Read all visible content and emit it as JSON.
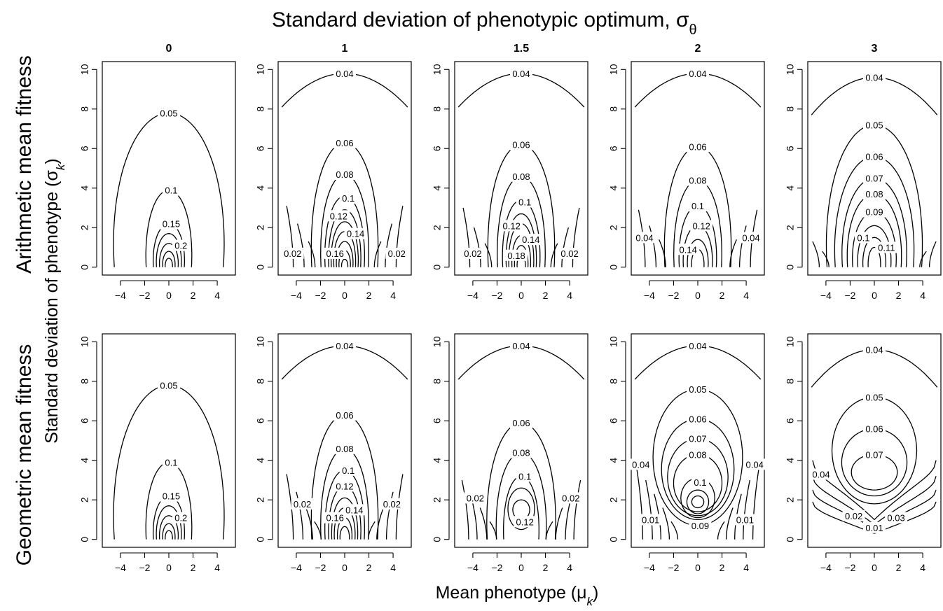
{
  "figure": {
    "top_title": "Standard deviation of phenotypic optimum, σ",
    "top_title_sub": "θ",
    "x_label": "Mean phenotype (μ",
    "x_label_sub": "k",
    "y_label": "Standard deviation of phenotype (σ",
    "y_label_sub": "k",
    "paren_close": ")",
    "row_labels": [
      "Arithmetic mean fitness",
      "Geometric mean fitness"
    ],
    "column_labels": [
      "0",
      "1",
      "1.5",
      "2",
      "3"
    ]
  },
  "chart_data": {
    "type": "contour",
    "x_ticks": [
      -4,
      -2,
      0,
      2,
      4
    ],
    "y_ticks": [
      0,
      2,
      4,
      6,
      8,
      10
    ],
    "xlim": [
      -5.5,
      5.5
    ],
    "ylim": [
      -0.4,
      10.4
    ],
    "panels": [
      {
        "row": 0,
        "col": 0,
        "levels": [
          {
            "label": "0.05",
            "half_width": 5.3,
            "height": 7.8,
            "label_x": 0,
            "label_y": 7.8
          },
          {
            "label": "0.1",
            "half_width": 2.2,
            "height": 3.9,
            "label_x": 0.2,
            "label_y": 3.9
          },
          {
            "label": "0.15",
            "half_width": 1.5,
            "height": 2.2,
            "label_x": 0.2,
            "label_y": 2.2
          },
          {
            "label": "0.2",
            "half_width": 1.2,
            "height": 1.7,
            "label_x": 1.0,
            "label_y": 1.1
          },
          {
            "label": "",
            "half_width": 0.9,
            "height": 1.2
          },
          {
            "label": "",
            "half_width": 0.6,
            "height": 0.8
          },
          {
            "label": "",
            "half_width": 0.35,
            "height": 0.45
          }
        ]
      },
      {
        "row": 0,
        "col": 1,
        "levels": [
          {
            "label": "0.04",
            "half_width": 5.2,
            "height": 9.8,
            "open_y": 8.1,
            "label_x": 0,
            "label_y": 9.8
          },
          {
            "label": "0.06",
            "half_width": 3.2,
            "height": 6.3,
            "label_x": 0,
            "label_y": 6.3
          },
          {
            "label": "0.08",
            "half_width": 2.3,
            "height": 4.7,
            "label_x": 0,
            "label_y": 4.7
          },
          {
            "label": "0.1",
            "half_width": 1.9,
            "height": 3.6,
            "label_x": 0.3,
            "label_y": 3.5
          },
          {
            "label": "0.12",
            "half_width": 1.55,
            "height": 2.9,
            "label_x": -0.5,
            "label_y": 2.6
          },
          {
            "label": "0.14",
            "half_width": 1.3,
            "height": 2.3,
            "label_x": 0.9,
            "label_y": 1.7
          },
          {
            "label": "0.16",
            "half_width": 1.05,
            "height": 1.8,
            "label_x": -0.8,
            "label_y": 0.7
          },
          {
            "label": "",
            "half_width": 0.8,
            "height": 1.3
          },
          {
            "label": "",
            "half_width": 0.55,
            "height": 0.85
          },
          {
            "label": "",
            "half_width": 0.3,
            "height": 0.4
          }
        ],
        "sides": [
          {
            "label": "0.02",
            "x": 4.8,
            "height": 3.1,
            "label_x": -4.3,
            "label_y": 0.7
          },
          {
            "label": "",
            "x": 3.9,
            "height": 2.2
          },
          {
            "label": "",
            "x": 3.0,
            "height": 1.3
          }
        ],
        "side_label_right": {
          "label": "0.02",
          "label_x": 4.3,
          "label_y": 0.7
        }
      },
      {
        "row": 0,
        "col": 2,
        "levels": [
          {
            "label": "0.04",
            "half_width": 5.2,
            "height": 9.8,
            "open_y": 8.1,
            "label_x": 0,
            "label_y": 9.8
          },
          {
            "label": "0.06",
            "half_width": 3.2,
            "height": 6.2,
            "label_x": 0,
            "label_y": 6.2
          },
          {
            "label": "0.08",
            "half_width": 2.3,
            "height": 4.6,
            "label_x": 0,
            "label_y": 4.6
          },
          {
            "label": "0.1",
            "half_width": 1.8,
            "height": 3.4,
            "label_x": 0.3,
            "label_y": 3.3
          },
          {
            "label": "0.12",
            "half_width": 1.45,
            "height": 2.7,
            "label_x": -0.8,
            "label_y": 2.1
          },
          {
            "label": "0.14",
            "half_width": 1.2,
            "height": 2.2,
            "label_x": 0.8,
            "label_y": 1.4
          },
          {
            "label": "0.18",
            "half_width": 0.9,
            "height": 1.6,
            "label_x": -0.4,
            "label_y": 0.6
          },
          {
            "label": "",
            "half_width": 0.65,
            "height": 1.1
          },
          {
            "label": "",
            "half_width": 0.4,
            "height": 0.6
          }
        ],
        "sides": [
          {
            "label": "0.02",
            "x": 4.8,
            "height": 3.0,
            "label_x": -4.0,
            "label_y": 0.7
          },
          {
            "label": "",
            "x": 3.9,
            "height": 2.0
          },
          {
            "label": "",
            "x": 3.0,
            "height": 1.2
          }
        ],
        "side_label_right": {
          "label": "0.02",
          "label_x": 4.0,
          "label_y": 0.7
        }
      },
      {
        "row": 0,
        "col": 3,
        "levels": [
          {
            "label": "0.04",
            "half_width": 5.2,
            "height": 9.8,
            "open_y": 8.1,
            "label_x": 0,
            "label_y": 9.8
          },
          {
            "label": "0.06",
            "half_width": 3.2,
            "height": 6.1,
            "label_x": 0,
            "label_y": 6.1
          },
          {
            "label": "0.08",
            "half_width": 2.3,
            "height": 4.4,
            "label_x": 0,
            "label_y": 4.4
          },
          {
            "label": "0.1",
            "half_width": 1.8,
            "height": 3.1,
            "label_x": 0,
            "label_y": 3.1
          },
          {
            "label": "0.12",
            "half_width": 1.4,
            "height": 2.1,
            "label_x": 0.3,
            "label_y": 2.1
          },
          {
            "label": "0.14",
            "half_width": 1.0,
            "height": 1.4,
            "label_x": -0.8,
            "label_y": 0.9
          },
          {
            "label": "",
            "half_width": 0.6,
            "height": 0.9
          }
        ],
        "sides": [
          {
            "label": "0.04",
            "x": 4.9,
            "height": 2.9,
            "label_x": -4.4,
            "label_y": 1.5
          },
          {
            "label": "",
            "x": 4.0,
            "height": 2.1
          },
          {
            "label": "",
            "x": 3.2,
            "height": 1.4
          }
        ],
        "side_label_right": {
          "label": "0.04",
          "label_x": 4.4,
          "label_y": 1.5
        }
      },
      {
        "row": 0,
        "col": 4,
        "levels": [
          {
            "label": "0.04",
            "half_width": 5.2,
            "height": 9.6,
            "open_y": 7.7,
            "label_x": 0,
            "label_y": 9.6
          },
          {
            "label": "0.05",
            "half_width": 4.6,
            "height": 7.2,
            "label_x": 0,
            "label_y": 7.2
          },
          {
            "label": "0.06",
            "half_width": 3.8,
            "height": 5.6,
            "label_x": 0,
            "label_y": 5.6
          },
          {
            "label": "0.07",
            "half_width": 3.1,
            "height": 4.5,
            "label_x": 0,
            "label_y": 4.5
          },
          {
            "label": "0.08",
            "half_width": 2.6,
            "height": 3.7,
            "label_x": 0,
            "label_y": 3.7
          },
          {
            "label": "0.09",
            "half_width": 2.1,
            "height": 2.8,
            "label_x": 0,
            "label_y": 2.8
          },
          {
            "label": "0.1",
            "half_width": 1.6,
            "height": 2.1,
            "label_x": -0.9,
            "label_y": 1.5
          },
          {
            "label": "0.11",
            "half_width": 1.1,
            "height": 1.5,
            "label_x": 1.0,
            "label_y": 1.0
          },
          {
            "label": "",
            "half_width": 0.6,
            "height": 1.0
          }
        ],
        "sides": [
          {
            "label": "",
            "x": 5.1,
            "height": 1.3
          },
          {
            "label": "",
            "x": 4.3,
            "height": 0.8
          }
        ]
      },
      {
        "row": 1,
        "col": 0,
        "levels": [
          {
            "label": "0.05",
            "half_width": 5.3,
            "height": 7.8,
            "label_x": 0,
            "label_y": 7.8
          },
          {
            "label": "0.1",
            "half_width": 2.2,
            "height": 3.9,
            "label_x": 0.2,
            "label_y": 3.9
          },
          {
            "label": "0.15",
            "half_width": 1.5,
            "height": 2.2,
            "label_x": 0.2,
            "label_y": 2.2
          },
          {
            "label": "0.2",
            "half_width": 1.2,
            "height": 1.7,
            "label_x": 1.0,
            "label_y": 1.1
          },
          {
            "label": "",
            "half_width": 0.9,
            "height": 1.2
          },
          {
            "label": "",
            "half_width": 0.6,
            "height": 0.8
          },
          {
            "label": "",
            "half_width": 0.35,
            "height": 0.45
          }
        ]
      },
      {
        "row": 1,
        "col": 1,
        "levels": [
          {
            "label": "0.04",
            "half_width": 5.2,
            "height": 9.8,
            "open_y": 8.1,
            "label_x": 0,
            "label_y": 9.8
          },
          {
            "label": "0.06",
            "half_width": 3.2,
            "height": 6.3,
            "label_x": 0,
            "label_y": 6.3
          },
          {
            "label": "0.08",
            "half_width": 2.3,
            "height": 4.6,
            "label_x": 0,
            "label_y": 4.6
          },
          {
            "label": "0.1",
            "half_width": 1.9,
            "height": 3.5,
            "label_x": 0.3,
            "label_y": 3.5
          },
          {
            "label": "0.12",
            "half_width": 1.55,
            "height": 2.7,
            "label_x": 0,
            "label_y": 2.7
          },
          {
            "label": "0.14",
            "half_width": 1.25,
            "height": 2.1,
            "label_x": 0.8,
            "label_y": 1.5
          },
          {
            "label": "0.16",
            "half_width": 1.0,
            "height": 1.6,
            "label_x": -0.8,
            "label_y": 1.1
          },
          {
            "label": "",
            "half_width": 0.7,
            "height": 1.1
          },
          {
            "label": "",
            "half_width": 0.45,
            "height": 0.65
          }
        ],
        "sides": [
          {
            "label": "0.02",
            "x": 4.8,
            "height": 3.3,
            "label_x": -3.5,
            "label_y": 1.8
          },
          {
            "label": "",
            "x": 4.0,
            "height": 2.4
          },
          {
            "label": "",
            "x": 3.2,
            "height": 1.6
          },
          {
            "label": "",
            "x": 2.5,
            "height": 0.9
          }
        ],
        "side_label_right": {
          "label": "0.02",
          "label_x": 3.9,
          "label_y": 1.8
        }
      },
      {
        "row": 1,
        "col": 2,
        "levels": [
          {
            "label": "0.04",
            "half_width": 5.2,
            "height": 9.8,
            "open_y": 8.1,
            "label_x": 0,
            "label_y": 9.8
          },
          {
            "label": "0.06",
            "half_width": 3.3,
            "height": 5.9,
            "label_x": 0,
            "label_y": 5.9
          },
          {
            "label": "0.08",
            "half_width": 2.4,
            "height": 4.4,
            "label_x": 0,
            "label_y": 4.4
          },
          {
            "label": "0.1",
            "half_width": 1.7,
            "height": 3.2,
            "label_x": 0.3,
            "label_y": 3.2
          },
          {
            "label": "0.12",
            "half_width": 1.1,
            "height": 2.6,
            "label_x": 0.3,
            "label_y": 0.9,
            "closed_bottom": 0.5
          },
          {
            "label": "",
            "half_width": 0.7,
            "height": 2.0,
            "closed_bottom": 1.0
          }
        ],
        "sides": [
          {
            "label": "0.02",
            "x": 4.9,
            "height": 3.0,
            "label_x": -3.8,
            "label_y": 2.1
          },
          {
            "label": "",
            "x": 4.2,
            "height": 2.3
          },
          {
            "label": "",
            "x": 3.4,
            "height": 1.6
          },
          {
            "label": "",
            "x": 2.6,
            "height": 0.9
          }
        ],
        "side_label_right": {
          "label": "0.02",
          "label_x": 4.1,
          "label_y": 2.1
        }
      },
      {
        "row": 1,
        "col": 3,
        "levels": [
          {
            "label": "0.04",
            "half_width": 5.2,
            "height": 9.8,
            "open_y": 8.1,
            "label_x": 0,
            "label_y": 9.8
          },
          {
            "label": "0.05",
            "half_width": 3.7,
            "height": 7.6,
            "closed_bottom": 0.7,
            "label_x": 0,
            "label_y": 7.6
          },
          {
            "label": "0.06",
            "half_width": 3.0,
            "height": 6.1,
            "closed_bottom": 1.0,
            "label_x": 0,
            "label_y": 6.1
          },
          {
            "label": "0.07",
            "half_width": 2.5,
            "height": 5.1,
            "closed_bottom": 1.2,
            "label_x": 0,
            "label_y": 5.1
          },
          {
            "label": "0.08",
            "half_width": 2.0,
            "height": 4.3,
            "closed_bottom": 1.4,
            "label_x": 0,
            "label_y": 4.3
          },
          {
            "label": "0.1",
            "half_width": 1.4,
            "height": 3.1,
            "closed_bottom": 1.1,
            "label_x": 0.2,
            "label_y": 2.9
          },
          {
            "label": "0.09",
            "half_width": 0.9,
            "height": 2.5,
            "closed_bottom": 1.3,
            "label_x": 0.2,
            "label_y": 0.7
          },
          {
            "label": "",
            "half_width": 0.5,
            "height": 2.2,
            "closed_bottom": 1.6
          }
        ],
        "sides": [
          {
            "label": "0.04",
            "x": 5.1,
            "height": 3.8,
            "label_x": -4.7,
            "label_y": 3.8
          },
          {
            "label": "0.01",
            "x": 4.3,
            "height": 3.0,
            "label_x": -3.9,
            "label_y": 1.0
          },
          {
            "label": "",
            "x": 3.6,
            "height": 2.3
          },
          {
            "label": "",
            "x": 2.9,
            "height": 1.6
          },
          {
            "label": "",
            "x": 2.2,
            "height": 0.9
          }
        ],
        "side_label_right": {
          "label": "0.04",
          "label_x": 4.7,
          "label_y": 3.8
        },
        "side_label_right2": {
          "label": "0.01",
          "label_x": 3.9,
          "label_y": 1.0
        }
      },
      {
        "row": 1,
        "col": 4,
        "levels": [
          {
            "label": "0.04",
            "half_width": 5.2,
            "height": 9.6,
            "open_y": 7.7,
            "label_x": 0,
            "label_y": 9.6
          },
          {
            "label": "0.05",
            "half_width": 3.5,
            "height": 7.2,
            "closed_bottom": 1.8,
            "label_x": 0,
            "label_y": 7.2
          },
          {
            "label": "0.06",
            "half_width": 2.7,
            "height": 5.6,
            "closed_bottom": 2.2,
            "label_x": 0,
            "label_y": 5.6
          },
          {
            "label": "0.07",
            "half_width": 1.9,
            "height": 4.3,
            "closed_bottom": 2.5,
            "label_x": 0,
            "label_y": 4.3
          }
        ],
        "sides": [
          {
            "label": "0.04",
            "x": 5.1,
            "height": 4.0,
            "label_x": -4.4,
            "label_y": 3.3,
            "join": 2.0
          },
          {
            "label": "",
            "x": 5.1,
            "height": 3.2,
            "join": 1.5
          },
          {
            "label": "0.02",
            "x": 5.1,
            "height": 2.5,
            "label_x": -1.7,
            "label_y": 1.2,
            "join": 1.1
          },
          {
            "label": "0.01",
            "x": 5.1,
            "height": 1.9,
            "label_x": 0,
            "label_y": 0.6,
            "join": 0.6
          }
        ],
        "side_label_right": {
          "label": "0.03",
          "label_x": 1.8,
          "label_y": 1.1
        }
      }
    ]
  }
}
